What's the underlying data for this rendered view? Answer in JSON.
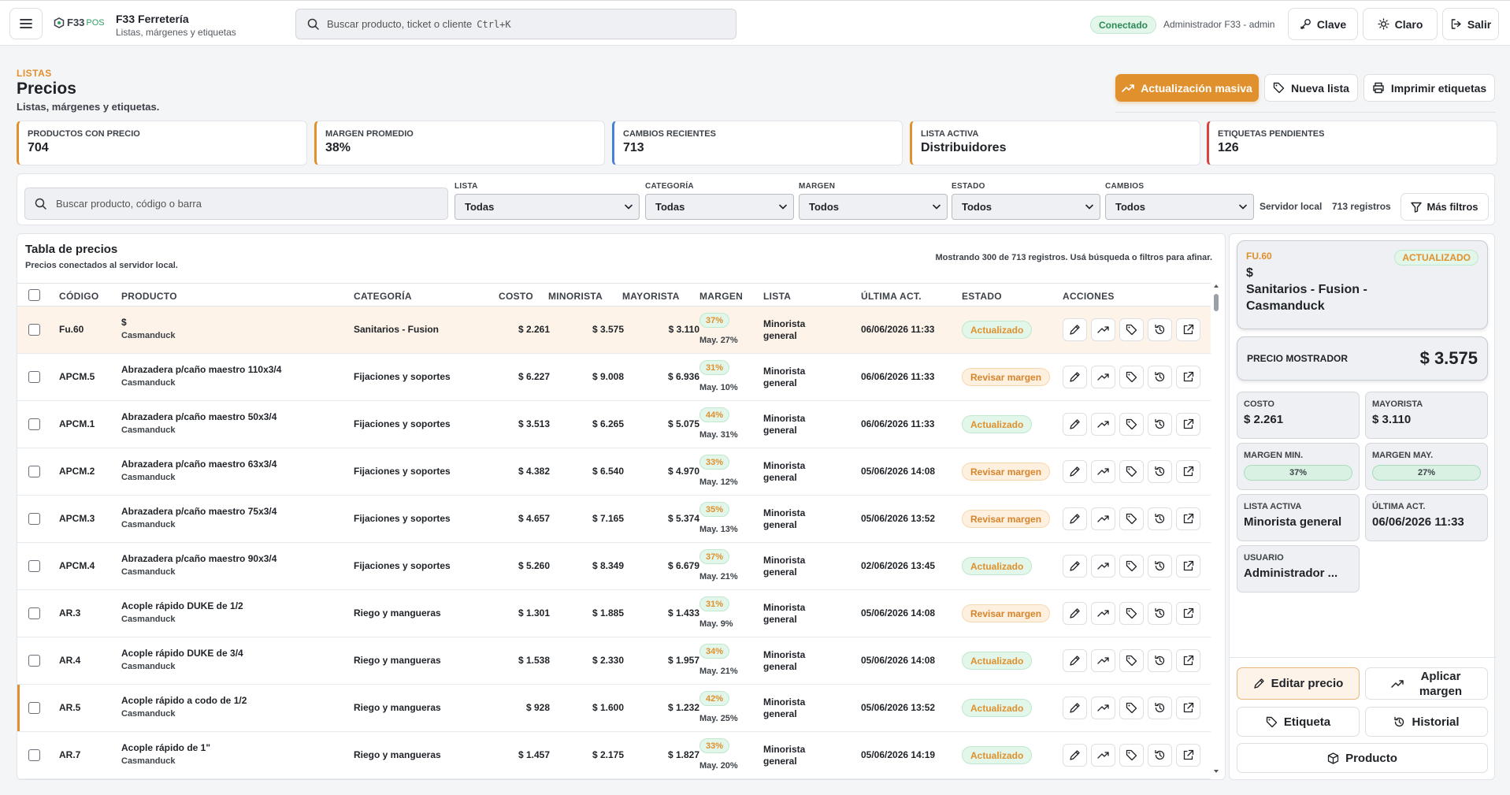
{
  "header": {
    "logo_f33": "F33",
    "logo_pos": "POS",
    "title": "F33 Ferretería",
    "subtitle": "Listas, márgenes y etiquetas",
    "search_placeholder": "Buscar producto, ticket o cliente",
    "search_shortcut": "Ctrl+K",
    "status": "Conectado",
    "user": "Administrador F33 - admin",
    "btn_clave": "Clave",
    "btn_theme": "Claro",
    "btn_exit": "Salir"
  },
  "page": {
    "kicker": "LISTAS",
    "title": "Precios",
    "subtitle": "Listas, márgenes y etiquetas.",
    "btn_bulk": "Actualización masiva",
    "btn_new_list": "Nueva lista",
    "btn_print": "Imprimir etiquetas"
  },
  "kpis": [
    {
      "label": "Productos con precio",
      "value": "704",
      "accent": "#e0902c"
    },
    {
      "label": "Margen promedio",
      "value": "38%",
      "accent": "#e0902c"
    },
    {
      "label": "Cambios recientes",
      "value": "713",
      "accent": "#4a7fd6"
    },
    {
      "label": "Lista activa",
      "value": "Distribuidores",
      "accent": "#e0902c"
    },
    {
      "label": "Etiquetas pendientes",
      "value": "126",
      "accent": "#d8443c"
    }
  ],
  "filters": {
    "search_placeholder": "Buscar producto, código o barra",
    "groups": [
      {
        "label": "LISTA",
        "value": "Todas"
      },
      {
        "label": "CATEGORÍA",
        "value": "Todas"
      },
      {
        "label": "MARGEN",
        "value": "Todos"
      },
      {
        "label": "ESTADO",
        "value": "Todos"
      },
      {
        "label": "CAMBIOS",
        "value": "Todos"
      }
    ],
    "server": "Servidor local",
    "records": "713 registros",
    "more": "Más filtros"
  },
  "table": {
    "title": "Tabla de precios",
    "subtitle": "Precios conectados al servidor local.",
    "count_note": "Mostrando 300 de 713 registros. Usá búsqueda o filtros para afinar.",
    "headers": {
      "codigo": "CÓDIGO",
      "producto": "PRODUCTO",
      "categoria": "CATEGORÍA",
      "costo": "COSTO",
      "minorista": "MINORISTA",
      "mayorista": "MAYORISTA",
      "margen": "MARGEN",
      "lista": "LISTA",
      "ultima": "ÚLTIMA ACT.",
      "estado": "ESTADO",
      "acciones": "ACCIONES"
    },
    "rows": [
      {
        "code": "Fu.60",
        "name": "$",
        "brand": "Casmanduck",
        "category": "Sanitarios - Fusion",
        "cost": "$ 2.261",
        "retail": "$ 3.575",
        "wholesale": "$ 3.110",
        "margin": "37%",
        "margin_may": "May. 27%",
        "list1": "Minorista",
        "list2": "general",
        "updated": "06/06/2026 11:33",
        "status": "Actualizado",
        "kind": "ok"
      },
      {
        "code": "APCM.5",
        "name": "Abrazadera p/caño maestro 110x3/4",
        "brand": "Casmanduck",
        "category": "Fijaciones y soportes",
        "cost": "$ 6.227",
        "retail": "$ 9.008",
        "wholesale": "$ 6.936",
        "margin": "31%",
        "margin_may": "May. 10%",
        "list1": "Minorista",
        "list2": "general",
        "updated": "06/06/2026 11:33",
        "status": "Revisar margen",
        "kind": "warn"
      },
      {
        "code": "APCM.1",
        "name": "Abrazadera p/caño maestro 50x3/4",
        "brand": "Casmanduck",
        "category": "Fijaciones y soportes",
        "cost": "$ 3.513",
        "retail": "$ 6.265",
        "wholesale": "$ 5.075",
        "margin": "44%",
        "margin_may": "May. 31%",
        "list1": "Minorista",
        "list2": "general",
        "updated": "06/06/2026 11:33",
        "status": "Actualizado",
        "kind": "ok"
      },
      {
        "code": "APCM.2",
        "name": "Abrazadera p/caño maestro 63x3/4",
        "brand": "Casmanduck",
        "category": "Fijaciones y soportes",
        "cost": "$ 4.382",
        "retail": "$ 6.540",
        "wholesale": "$ 4.970",
        "margin": "33%",
        "margin_may": "May. 12%",
        "list1": "Minorista",
        "list2": "general",
        "updated": "05/06/2026 14:08",
        "status": "Revisar margen",
        "kind": "warn"
      },
      {
        "code": "APCM.3",
        "name": "Abrazadera p/caño maestro 75x3/4",
        "brand": "Casmanduck",
        "category": "Fijaciones y soportes",
        "cost": "$ 4.657",
        "retail": "$ 7.165",
        "wholesale": "$ 5.374",
        "margin": "35%",
        "margin_may": "May. 13%",
        "list1": "Minorista",
        "list2": "general",
        "updated": "05/06/2026 13:52",
        "status": "Revisar margen",
        "kind": "warn"
      },
      {
        "code": "APCM.4",
        "name": "Abrazadera p/caño maestro 90x3/4",
        "brand": "Casmanduck",
        "category": "Fijaciones y soportes",
        "cost": "$ 5.260",
        "retail": "$ 8.349",
        "wholesale": "$ 6.679",
        "margin": "37%",
        "margin_may": "May. 21%",
        "list1": "Minorista",
        "list2": "general",
        "updated": "02/06/2026 13:45",
        "status": "Actualizado",
        "kind": "ok"
      },
      {
        "code": "AR.3",
        "name": "Acople rápido DUKE de 1/2",
        "brand": "Casmanduck",
        "category": "Riego y mangueras",
        "cost": "$ 1.301",
        "retail": "$ 1.885",
        "wholesale": "$ 1.433",
        "margin": "31%",
        "margin_may": "May. 9%",
        "list1": "Minorista",
        "list2": "general",
        "updated": "05/06/2026 14:08",
        "status": "Revisar margen",
        "kind": "warn"
      },
      {
        "code": "AR.4",
        "name": "Acople rápido DUKE de 3/4",
        "brand": "Casmanduck",
        "category": "Riego y mangueras",
        "cost": "$ 1.538",
        "retail": "$ 2.330",
        "wholesale": "$ 1.957",
        "margin": "34%",
        "margin_may": "May. 21%",
        "list1": "Minorista",
        "list2": "general",
        "updated": "05/06/2026 14:08",
        "status": "Actualizado",
        "kind": "ok"
      },
      {
        "code": "AR.5",
        "name": "Acople rápido a codo de 1/2",
        "brand": "Casmanduck",
        "category": "Riego y mangueras",
        "cost": "$ 928",
        "retail": "$ 1.600",
        "wholesale": "$ 1.232",
        "margin": "42%",
        "margin_may": "May. 25%",
        "list1": "Minorista",
        "list2": "general",
        "updated": "05/06/2026 13:52",
        "status": "Actualizado",
        "kind": "ok"
      },
      {
        "code": "AR.7",
        "name": "Acople rápido de 1\"",
        "brand": "Casmanduck",
        "category": "Riego y mangueras",
        "cost": "$ 1.457",
        "retail": "$ 2.175",
        "wholesale": "$ 1.827",
        "margin": "33%",
        "margin_may": "May. 20%",
        "list1": "Minorista",
        "list2": "general",
        "updated": "05/06/2026 14:19",
        "status": "Actualizado",
        "kind": "ok"
      }
    ]
  },
  "detail": {
    "code": "FU.60",
    "status": "ACTUALIZADO",
    "name_line1": "$",
    "name_line2": "Sanitarios - Fusion -",
    "name_line3": "Casmanduck",
    "price_label": "PRECIO MOSTRADOR",
    "price_value": "$ 3.575",
    "costo_label": "COSTO",
    "costo_value": "$ 2.261",
    "mayorista_label": "MAYORISTA",
    "mayorista_value": "$ 3.110",
    "mmin_label": "MARGEN MIN.",
    "mmin_value": "37%",
    "mmay_label": "MARGEN MAY.",
    "mmay_value": "27%",
    "lista_label": "LISTA ACTIVA",
    "lista_value": "Minorista general",
    "ultima_label": "ÚLTIMA ACT.",
    "ultima_value": "06/06/2026 11:33",
    "usuario_label": "USUARIO",
    "usuario_value": "Administrador ...",
    "btn_edit": "Editar precio",
    "btn_margin_1": "Aplicar",
    "btn_margin_2": "margen",
    "btn_label": "Etiqueta",
    "btn_history": "Historial",
    "btn_product": "Producto"
  }
}
